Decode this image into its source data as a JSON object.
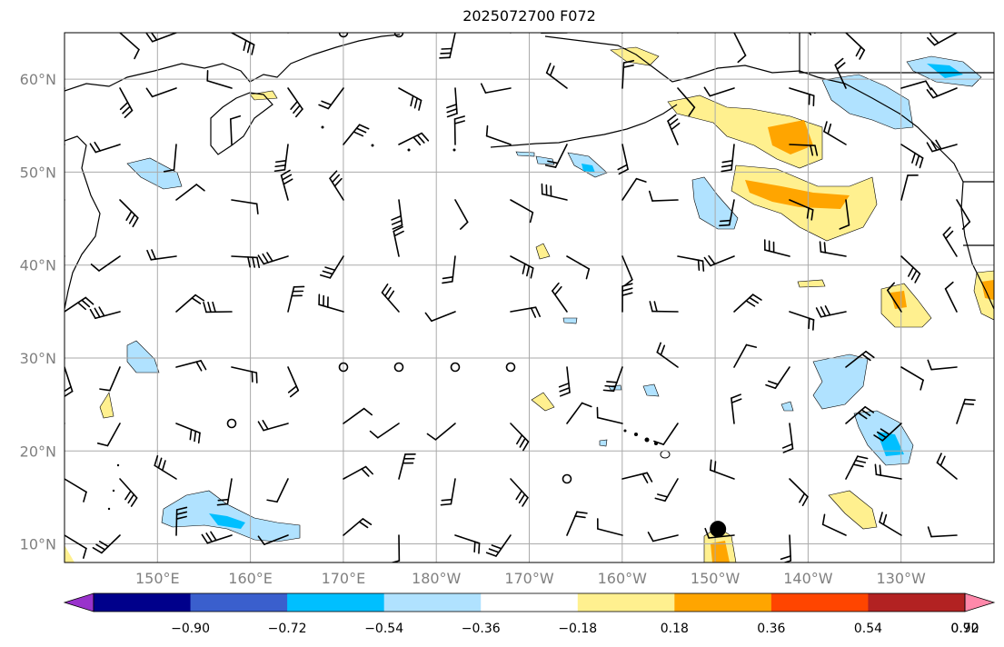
{
  "title": "2025072700 F072",
  "map": {
    "lat_labels": [
      {
        "text": "60°N",
        "lat": 60
      },
      {
        "text": "50°N",
        "lat": 50
      },
      {
        "text": "40°N",
        "lat": 40
      },
      {
        "text": "30°N",
        "lat": 30
      },
      {
        "text": "20°N",
        "lat": 20
      },
      {
        "text": "10°N",
        "lat": 10
      }
    ],
    "lon_labels": [
      {
        "text": "150°E",
        "lon": 150
      },
      {
        "text": "160°E",
        "lon": 160
      },
      {
        "text": "170°E",
        "lon": 170
      },
      {
        "text": "180°W",
        "lon": 180
      },
      {
        "text": "170°W",
        "lon": 190
      },
      {
        "text": "160°W",
        "lon": 200
      },
      {
        "text": "150°W",
        "lon": 210
      },
      {
        "text": "140°W",
        "lon": 220
      },
      {
        "text": "130°W",
        "lon": 230
      }
    ],
    "extent": {
      "lon_min": 140,
      "lon_max": 240,
      "lat_min": 8,
      "lat_max": 65
    },
    "marker": {
      "lon": 210.3,
      "lat": 11.6,
      "color": "#000000"
    }
  },
  "colorbar": {
    "colors": [
      "#9932cc",
      "#00008b",
      "#3a5fcd",
      "#00bfff",
      "#b0e2ff",
      "#ffffff",
      "#fff08f",
      "#ffa500",
      "#ff4500",
      "#b22222",
      "#ff88aa"
    ],
    "tick_labels": [
      "−0.90",
      "−0.72",
      "−0.54",
      "−0.36",
      "−0.18",
      "0.18",
      "0.36",
      "0.54",
      "0.72",
      "0.90"
    ]
  }
}
